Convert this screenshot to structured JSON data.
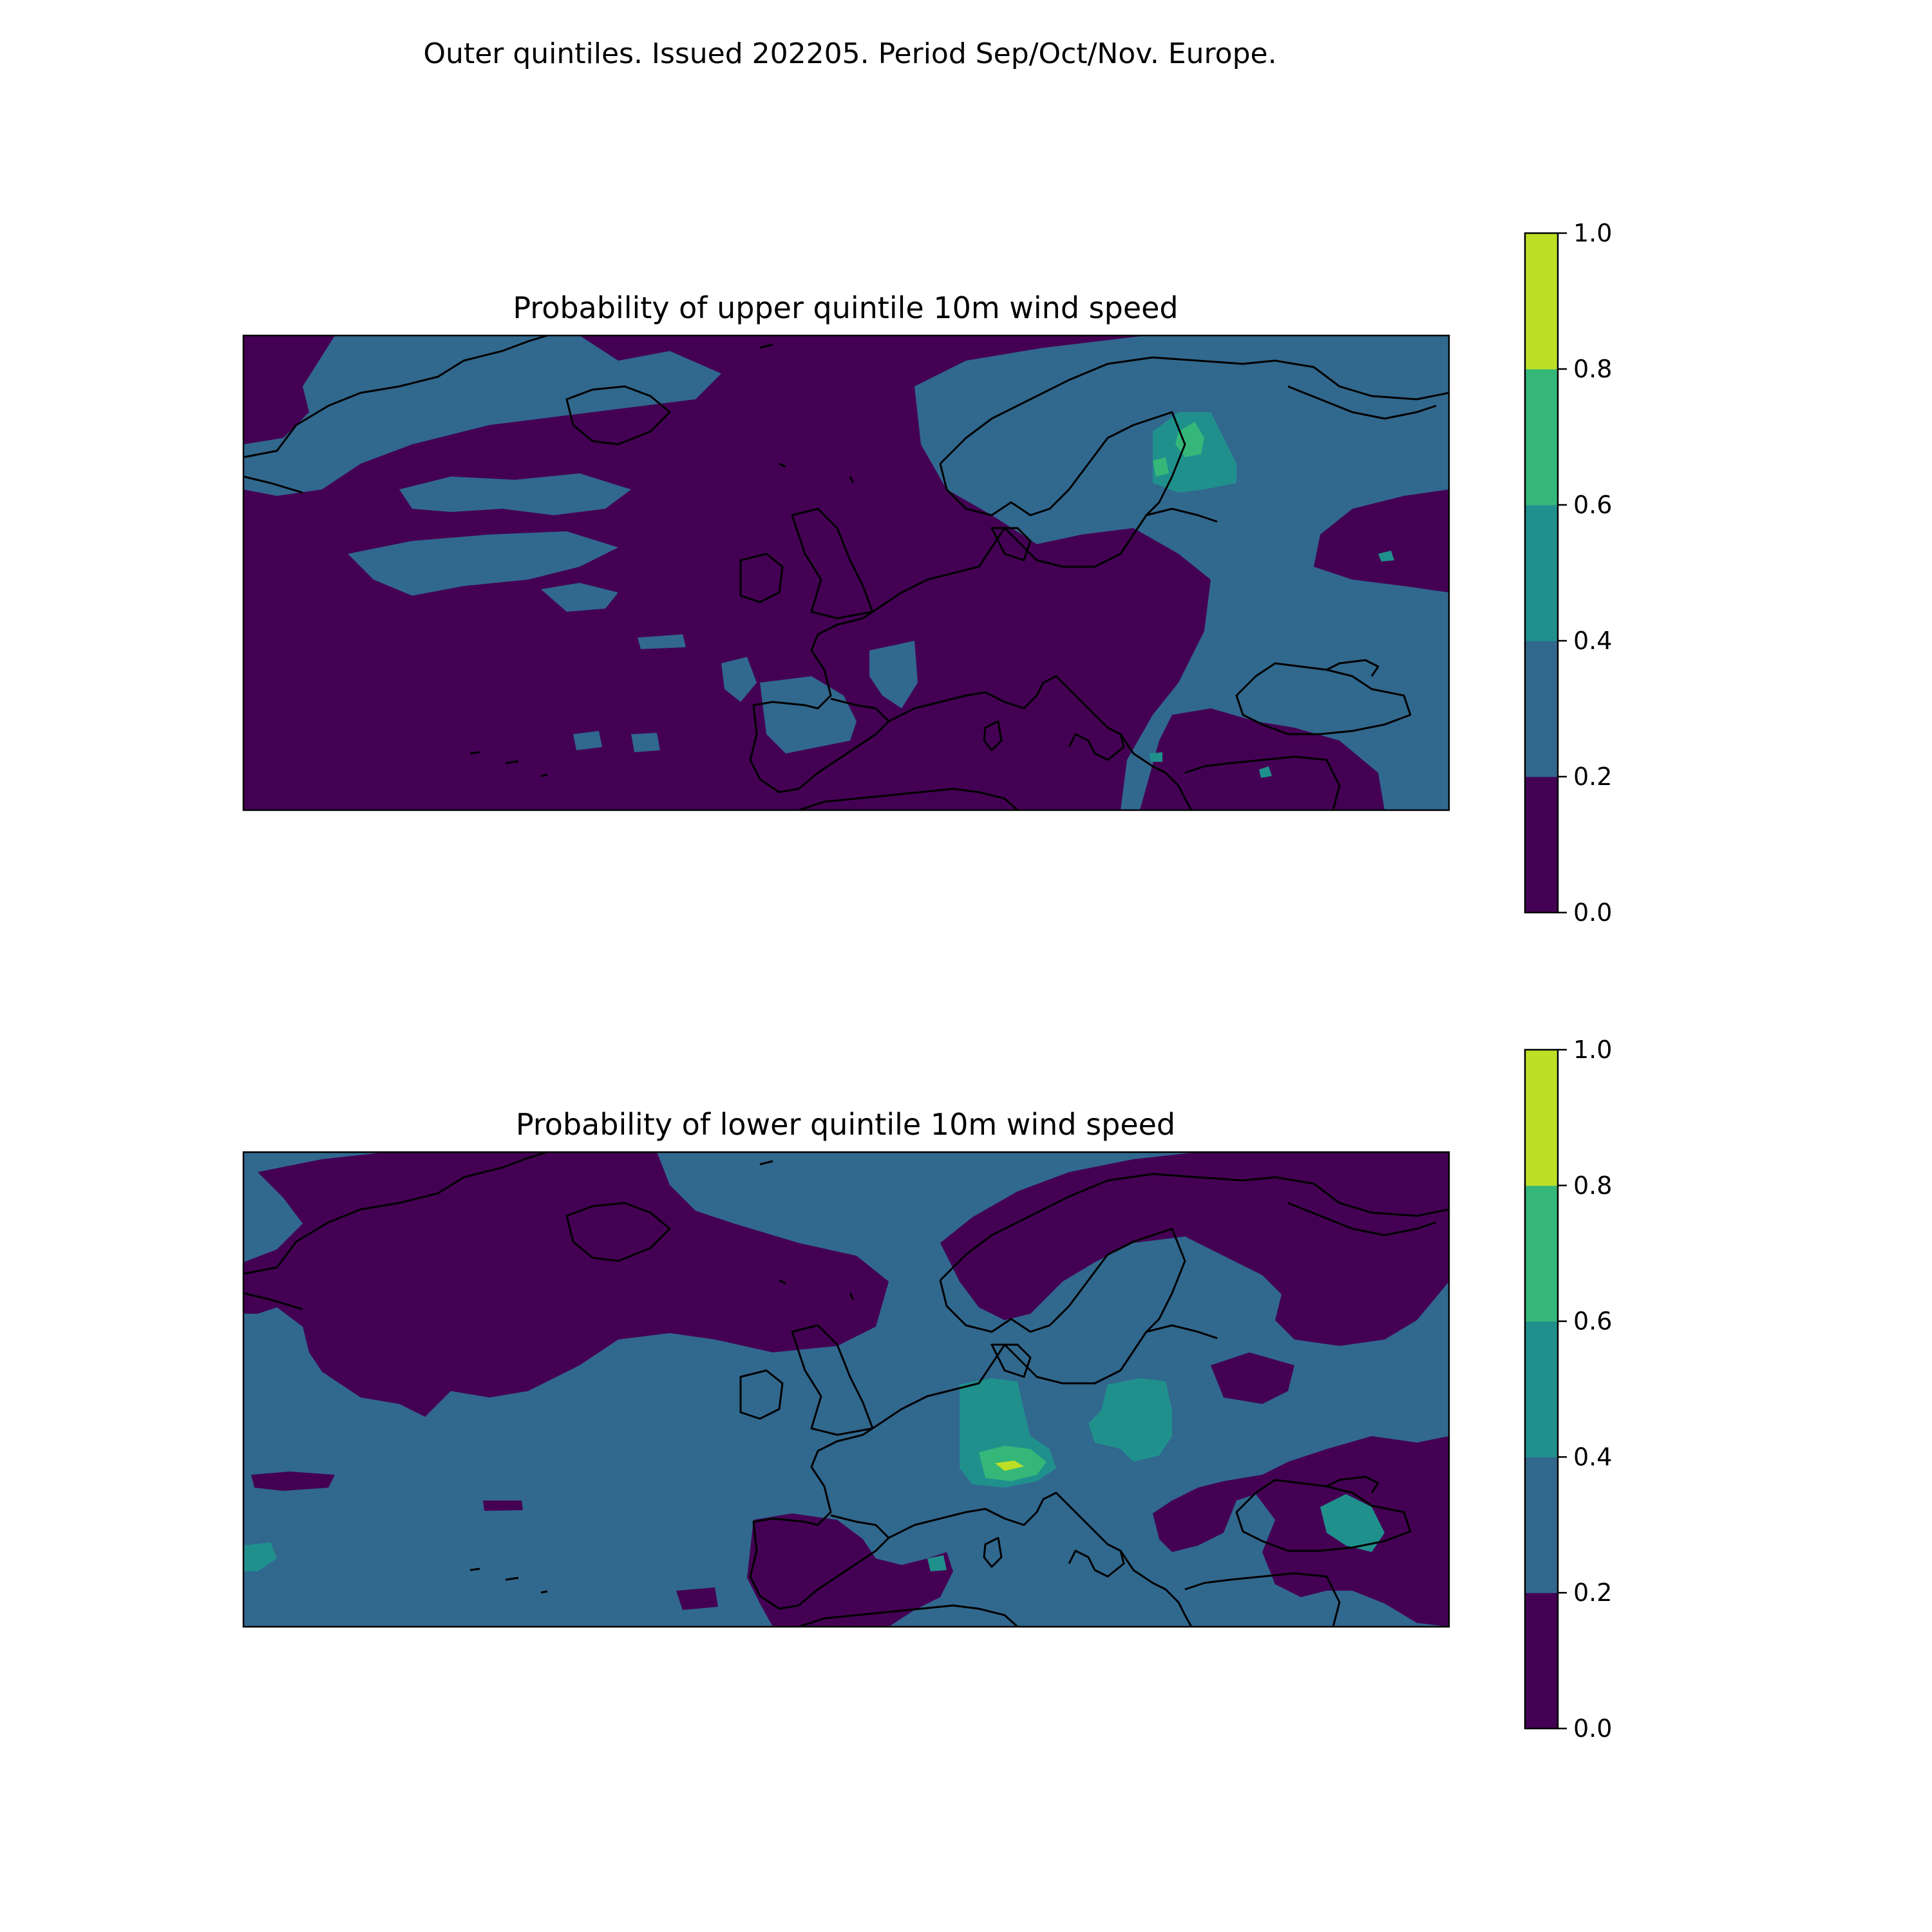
{
  "figure_title": "Outer quintiles. Issued 202205. Period Sep/Oct/Nov. Europe.",
  "colors": {
    "levels": [
      "#440154",
      "#31688e",
      "#20908d",
      "#35b779",
      "#bddf26"
    ],
    "band_boundaries": [
      0.0,
      0.2,
      0.4,
      0.6,
      0.8,
      1.0
    ],
    "frame": "#000000",
    "coastline": "#000000",
    "background": "#ffffff"
  },
  "panels": [
    {
      "id": "upper",
      "title": "Probability of upper quintile 10m wind speed",
      "colorbar_ticks": [
        "0.0",
        "0.2",
        "0.4",
        "0.6",
        "0.8",
        "1.0"
      ],
      "background_level": 0,
      "regions": [
        {
          "level": 1,
          "desc": "Greenland strait band"
        },
        {
          "level": 1,
          "desc": "north atlantic bands"
        },
        {
          "level": 1,
          "desc": "scandinavia russia"
        },
        {
          "level": 1,
          "desc": "iberia"
        },
        {
          "level": 1,
          "desc": "eastern mediterranean turkey"
        },
        {
          "level": 2,
          "desc": "finland core"
        },
        {
          "level": 3,
          "desc": "finland peak"
        }
      ]
    },
    {
      "id": "lower",
      "title": "Probability of lower quintile 10m wind speed",
      "colorbar_ticks": [
        "0.0",
        "0.2",
        "0.4",
        "0.6",
        "0.8",
        "1.0"
      ],
      "background_level": 1,
      "regions": [
        {
          "level": 0,
          "desc": "greenland iceland band"
        },
        {
          "level": 0,
          "desc": "mid atlantic band"
        },
        {
          "level": 0,
          "desc": "north russia"
        },
        {
          "level": 0,
          "desc": "iberia north africa"
        },
        {
          "level": 2,
          "desc": "central europe"
        },
        {
          "level": 2,
          "desc": "belarus"
        },
        {
          "level": 2,
          "desc": "caspian"
        },
        {
          "level": 3,
          "desc": "germany core"
        },
        {
          "level": 4,
          "desc": "germany peak"
        }
      ]
    }
  ]
}
